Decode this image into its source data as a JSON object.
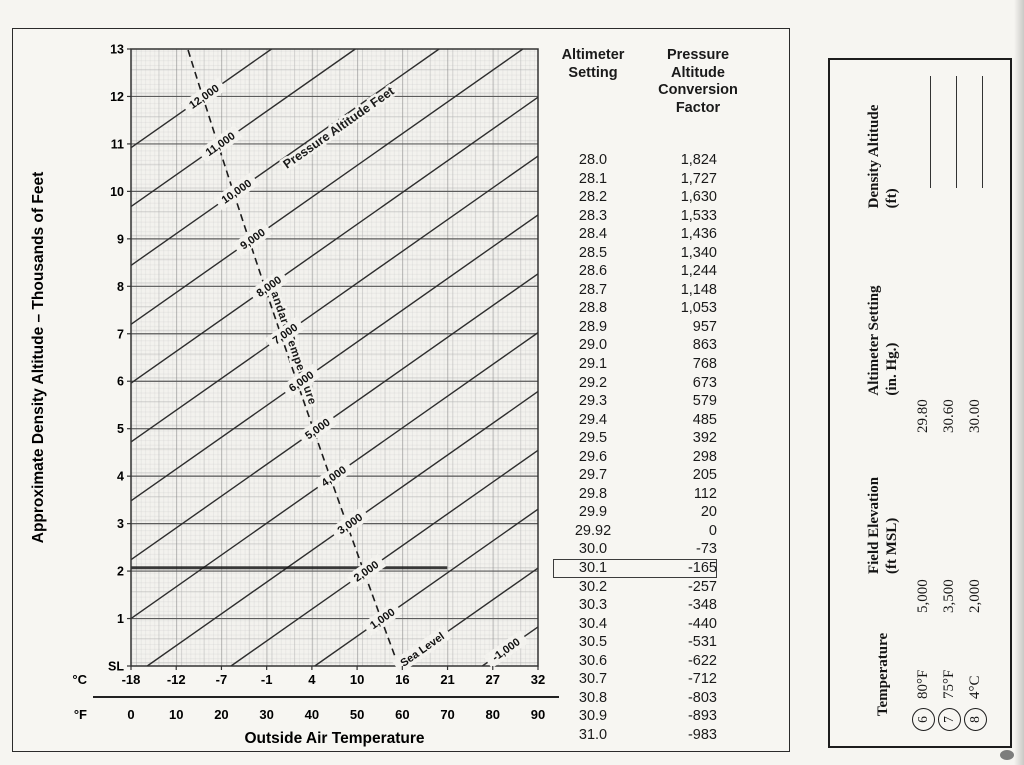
{
  "page": {
    "paper": "#f6f5f1",
    "ink": "#1a1a1a",
    "plot_bg": "#f3f2ee"
  },
  "chart_data": {
    "type": "line",
    "title": "",
    "xlabel": "Outside Air Temperature",
    "ylabel": "Approximate Density Altitude – Thousands of Feet",
    "grid": true,
    "x_axis": {
      "range_c": [
        -18,
        32.2
      ],
      "celsius": {
        "label": "°C",
        "ticks": [
          "-18",
          "-12",
          "-7",
          "-1",
          "4",
          "10",
          "16",
          "21",
          "27",
          "32"
        ]
      },
      "fahrenheit": {
        "label": "°F",
        "ticks": [
          "0",
          "10",
          "20",
          "30",
          "40",
          "50",
          "60",
          "70",
          "80",
          "90"
        ]
      }
    },
    "y_axis": {
      "range": [
        0,
        13
      ],
      "ticks": [
        "SL",
        "1",
        "2",
        "3",
        "4",
        "5",
        "6",
        "7",
        "8",
        "9",
        "10",
        "11",
        "12",
        "13"
      ]
    },
    "pressure_altitude": {
      "series_label": "Pressure Altitude Feet",
      "slope_thousand_ft_per_c": 0.12,
      "lines": [
        {
          "value": -1,
          "label": "-1,000"
        },
        {
          "value": 0,
          "label": "Sea Level"
        },
        {
          "value": 1,
          "label": "1,000"
        },
        {
          "value": 2,
          "label": "2,000"
        },
        {
          "value": 3,
          "label": "3,000"
        },
        {
          "value": 4,
          "label": "4,000"
        },
        {
          "value": 5,
          "label": "5,000"
        },
        {
          "value": 6,
          "label": "6,000"
        },
        {
          "value": 7,
          "label": "7,000"
        },
        {
          "value": 8,
          "label": "8,000"
        },
        {
          "value": 9,
          "label": "9,000"
        },
        {
          "value": 10,
          "label": "10,000"
        },
        {
          "value": 11,
          "label": "11,000"
        },
        {
          "value": 12,
          "label": "12,000"
        }
      ]
    },
    "standard_temperature": {
      "label": "Standard Temperature",
      "sea_level_c": 15,
      "lapse_c_per_thousand_ft": 2
    },
    "annotation": {
      "solution_line_density_altitude": 2.07,
      "t_start_c": -18,
      "t_end_c": 21
    }
  },
  "conversion_table": {
    "col1_header": "Altimeter\nSetting",
    "col2_header": "Pressure\nAltitude\nConversion\nFactor",
    "highlighted_row": "30.1",
    "rows": [
      [
        "28.0",
        "1,824"
      ],
      [
        "28.1",
        "1,727"
      ],
      [
        "28.2",
        "1,630"
      ],
      [
        "28.3",
        "1,533"
      ],
      [
        "28.4",
        "1,436"
      ],
      [
        "28.5",
        "1,340"
      ],
      [
        "28.6",
        "1,244"
      ],
      [
        "28.7",
        "1,148"
      ],
      [
        "28.8",
        "1,053"
      ],
      [
        "28.9",
        "957"
      ],
      [
        "29.0",
        "863"
      ],
      [
        "29.1",
        "768"
      ],
      [
        "29.2",
        "673"
      ],
      [
        "29.3",
        "579"
      ],
      [
        "29.4",
        "485"
      ],
      [
        "29.5",
        "392"
      ],
      [
        "29.6",
        "298"
      ],
      [
        "29.7",
        "205"
      ],
      [
        "29.8",
        "112"
      ],
      [
        "29.9",
        "20"
      ],
      [
        "29.92",
        "0"
      ],
      [
        "30.0",
        "-73"
      ],
      [
        "30.1",
        "-165"
      ],
      [
        "30.2",
        "-257"
      ],
      [
        "30.3",
        "-348"
      ],
      [
        "30.4",
        "-440"
      ],
      [
        "30.5",
        "-531"
      ],
      [
        "30.6",
        "-622"
      ],
      [
        "30.7",
        "-712"
      ],
      [
        "30.8",
        "-803"
      ],
      [
        "30.9",
        "-893"
      ],
      [
        "31.0",
        "-983"
      ]
    ]
  },
  "worksheet": {
    "headers": [
      "Temperature",
      "Field Elevation\n(ft MSL)",
      "Altimeter Setting\n(in. Hg.)",
      "Density Altitude\n(ft)"
    ],
    "rows": [
      {
        "num": "6",
        "temperature": "80°F",
        "field_elevation": "5,000",
        "altimeter_setting": "29.80",
        "density_altitude": ""
      },
      {
        "num": "7",
        "temperature": "75°F",
        "field_elevation": "3,500",
        "altimeter_setting": "30.60",
        "density_altitude": ""
      },
      {
        "num": "8",
        "temperature": "4°C",
        "field_elevation": "2,000",
        "altimeter_setting": "30.00",
        "density_altitude": ""
      }
    ]
  }
}
